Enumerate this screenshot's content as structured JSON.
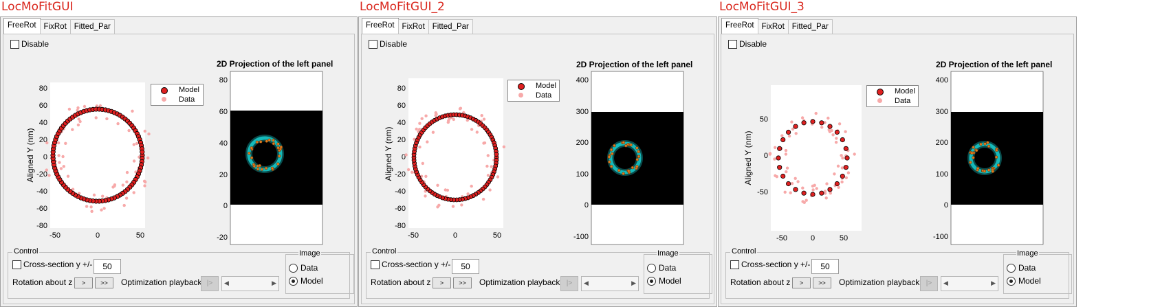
{
  "panels": [
    {
      "title": "LocMoFitGUI",
      "tabs": [
        "FreeRot",
        "FixRot",
        "Fitted_Par"
      ],
      "active_tab": "FreeRot",
      "disable_label": "Disable",
      "left_plot": {
        "ylabel": "Aligned Y (nm)",
        "xticks": [
          "-50",
          "0",
          "50"
        ],
        "yticks": [
          "80",
          "60",
          "40",
          "20",
          "0",
          "-20",
          "-40",
          "-60",
          "-80"
        ],
        "legend": [
          "Model",
          "Data"
        ]
      },
      "right_plot": {
        "title": "2D Projection of the left panel",
        "yticks": [
          "80",
          "60",
          "40",
          "20",
          "0",
          "-20"
        ]
      },
      "control": {
        "label": "Control",
        "cross_section_label": "Cross-section y +/-",
        "cross_section_value": "50",
        "rotation_label": "Rotation about z",
        "rot_btn1": ">",
        "rot_btn2": ">>",
        "playback_label": "Optimization playback",
        "play_btn": "|>",
        "image_group_label": "Image",
        "radio_data": "Data",
        "radio_model": "Model",
        "selected_radio": "Model"
      }
    },
    {
      "title": "LocMoFitGUI_2",
      "tabs": [
        "FreeRot",
        "FixRot",
        "Fitted_Par"
      ],
      "active_tab": "FreeRot",
      "disable_label": "Disable",
      "left_plot": {
        "ylabel": "Aligned Y (nm)",
        "xticks": [
          "-50",
          "0",
          "50"
        ],
        "yticks": [
          "80",
          "60",
          "40",
          "20",
          "0",
          "-20",
          "-40",
          "-60",
          "-80"
        ],
        "legend": [
          "Model",
          "Data"
        ]
      },
      "right_plot": {
        "title": "2D Projection of the left panel",
        "yticks": [
          "400",
          "300",
          "200",
          "100",
          "0",
          "-100"
        ]
      },
      "control": {
        "label": "Control",
        "cross_section_label": "Cross-section y +/-",
        "cross_section_value": "50",
        "rotation_label": "Rotation about z",
        "rot_btn1": ">",
        "rot_btn2": ">>",
        "playback_label": "Optimization playback",
        "play_btn": "|>",
        "image_group_label": "Image",
        "radio_data": "Data",
        "radio_model": "Model",
        "selected_radio": "Model"
      }
    },
    {
      "title": "LocMoFitGUI_3",
      "tabs": [
        "FreeRot",
        "FixRot",
        "Fitted_Par"
      ],
      "active_tab": "FreeRot",
      "disable_label": "Disable",
      "left_plot": {
        "ylabel": "Aligned Y (nm)",
        "xticks": [
          "-50",
          "0",
          "50"
        ],
        "yticks": [
          "50",
          "0",
          "-50"
        ],
        "legend": [
          "Model",
          "Data"
        ]
      },
      "right_plot": {
        "title": "2D Projection of the left panel",
        "yticks": [
          "400",
          "300",
          "200",
          "100",
          "0",
          "-100"
        ]
      },
      "control": {
        "label": "Control",
        "cross_section_label": "Cross-section y +/-",
        "cross_section_value": "50",
        "rotation_label": "Rotation about z",
        "rot_btn1": ">",
        "rot_btn2": ">>",
        "playback_label": "Optimization playback",
        "play_btn": "|>",
        "image_group_label": "Image",
        "radio_data": "Data",
        "radio_model": "Model",
        "selected_radio": "Model"
      }
    }
  ],
  "colors": {
    "title_red": "#d9261c",
    "model_marker": "#e02020",
    "data_marker": "#f7a9a9",
    "ring_cyan": "#19d6d6",
    "loc_orange": "#e07a1f"
  }
}
